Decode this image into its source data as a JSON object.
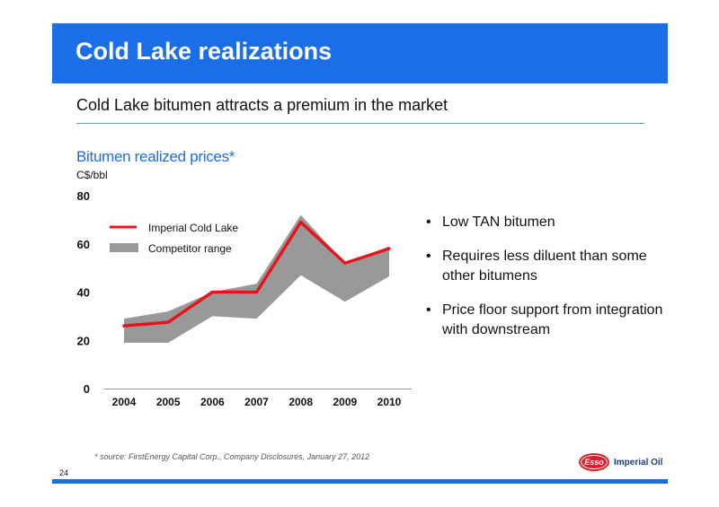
{
  "slide": {
    "title": "Cold Lake realizations",
    "subtitle": "Cold Lake bitumen attracts a premium in the market",
    "page_number": "24",
    "source_note": "* source: FirstEnergy Capital Corp., Company Disclosures, January 27, 2012"
  },
  "logo": {
    "mark_text": "Esso",
    "company_name": "Imperial Oil"
  },
  "bullets": [
    "Low TAN bitumen",
    "Requires less diluent than some other bitumens",
    "Price floor support from integration with downstream"
  ],
  "colors": {
    "brand_blue": "#1a6ee8",
    "line_red": "#e8141c",
    "range_gray": "#999999"
  },
  "chart_data": {
    "type": "line",
    "title": "Bitumen realized prices*",
    "unit_label": "C$/bbl",
    "x": [
      "2004",
      "2005",
      "2006",
      "2007",
      "2008",
      "2009",
      "2010"
    ],
    "y_ticks": [
      "0",
      "20",
      "40",
      "60",
      "80"
    ],
    "ylim": [
      0,
      80
    ],
    "grid": false,
    "legend_position": "top-left",
    "series": [
      {
        "name": "Imperial Cold Lake",
        "type": "line",
        "color": "#e8141c",
        "values": [
          26,
          27.5,
          40,
          40,
          69,
          52,
          58
        ]
      },
      {
        "name": "Competitor range",
        "type": "range",
        "color": "#999999",
        "low": [
          19,
          19,
          30,
          29,
          47,
          36,
          46.5
        ],
        "high": [
          29,
          32,
          40,
          43.5,
          72,
          52,
          59
        ]
      }
    ]
  }
}
